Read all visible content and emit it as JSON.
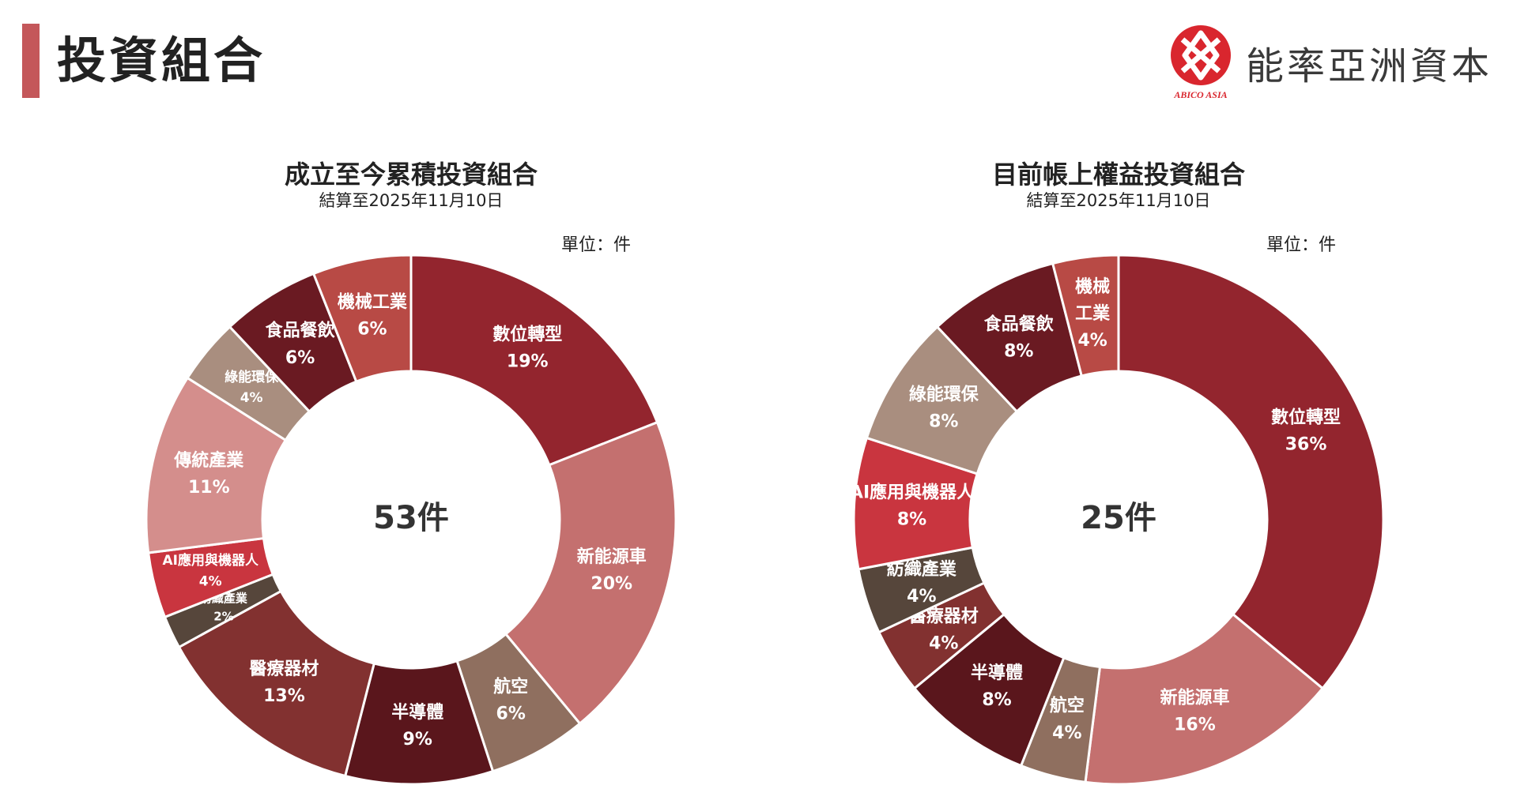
{
  "header": {
    "title": "投資組合",
    "brand_name": "能率亞洲資本",
    "brand_logo_text": "ABICO ASIA",
    "accent_color": "#c4575a"
  },
  "chart_data": [
    {
      "type": "pie",
      "title": "成立至今累積投資組合",
      "subtitle": "結算至2025年11月10日",
      "unit": "單位：件",
      "center_label": "53件",
      "slices": [
        {
          "label": "數位轉型",
          "value": 19,
          "display": "19%",
          "color": "#93252e"
        },
        {
          "label": "新能源車",
          "value": 20,
          "display": "20%",
          "color": "#c4706f"
        },
        {
          "label": "航空",
          "value": 6,
          "display": "6%",
          "color": "#8f6f5f"
        },
        {
          "label": "半導體",
          "value": 9,
          "display": "9%",
          "color": "#5a161c"
        },
        {
          "label": "醫療器材",
          "value": 13,
          "display": "13%",
          "color": "#823130"
        },
        {
          "label": "紡織產業",
          "value": 2,
          "display": "2%",
          "color": "#56463b"
        },
        {
          "label": "AI應用與機器人",
          "value": 4,
          "display": "4%",
          "color": "#c9353f"
        },
        {
          "label": "傳統產業",
          "value": 11,
          "display": "11%",
          "color": "#d48e8c"
        },
        {
          "label": "綠能環保",
          "value": 4,
          "display": "4%",
          "color": "#a98e7f"
        },
        {
          "label": "食品餐飲",
          "value": 6,
          "display": "6%",
          "color": "#6a1a22"
        },
        {
          "label": "機械工業",
          "value": 6,
          "display": "6%",
          "color": "#b84a45"
        }
      ]
    },
    {
      "type": "pie",
      "title": "目前帳上權益投資組合",
      "subtitle": "結算至2025年11月10日",
      "unit": "單位：件",
      "center_label": "25件",
      "slices": [
        {
          "label": "數位轉型",
          "value": 36,
          "display": "36%",
          "color": "#93252e"
        },
        {
          "label": "新能源車",
          "value": 16,
          "display": "16%",
          "color": "#c4706f"
        },
        {
          "label": "航空",
          "value": 4,
          "display": "4%",
          "color": "#8f6f5f"
        },
        {
          "label": "半導體",
          "value": 8,
          "display": "8%",
          "color": "#5a161c"
        },
        {
          "label": "醫療器材",
          "value": 4,
          "display": "4%",
          "color": "#823130"
        },
        {
          "label": "紡織產業",
          "value": 4,
          "display": "4%",
          "color": "#56463b"
        },
        {
          "label": "AI應用與機器人",
          "value": 8,
          "display": "8%",
          "color": "#c9353f"
        },
        {
          "label": "綠能環保",
          "value": 8,
          "display": "8%",
          "color": "#a98e7f"
        },
        {
          "label": "食品餐飲",
          "value": 8,
          "display": "8%",
          "color": "#6a1a22"
        },
        {
          "label": "機械工業",
          "value": 4,
          "display": "4%",
          "color": "#b84a45",
          "wrap": [
            "機械",
            "工業"
          ]
        }
      ]
    }
  ]
}
